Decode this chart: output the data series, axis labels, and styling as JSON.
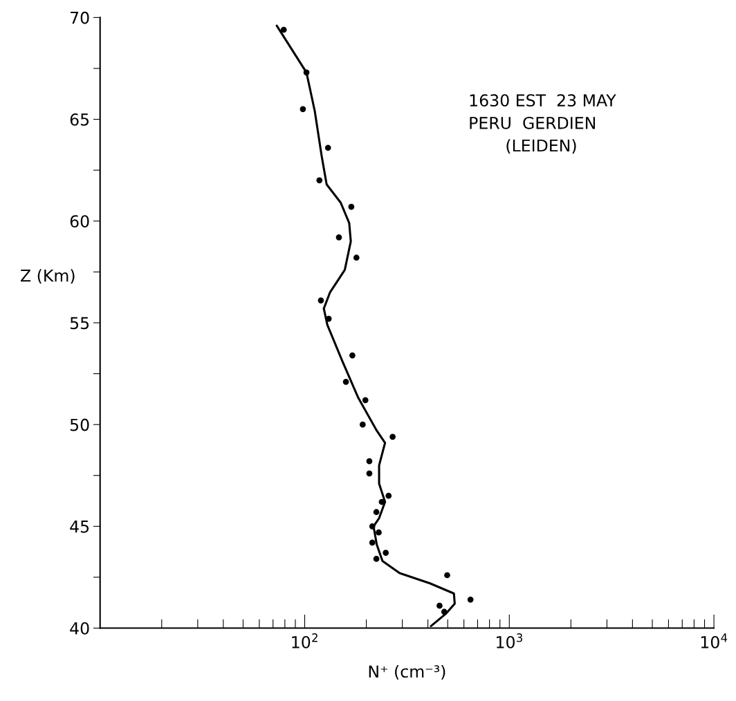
{
  "chart_data": {
    "type": "scatter",
    "xlabel": "N⁺ (cm⁻³)",
    "ylabel": "Z (Km)",
    "log": "x",
    "grid": false,
    "legend": false,
    "annotations": [
      "1630 EST  23 MAY",
      "PERU  GERDIEN",
      "(LEIDEN)"
    ],
    "xlim": [
      10,
      10000
    ],
    "xticks": [
      {
        "value": 20,
        "label": null
      },
      {
        "value": 30,
        "label": null
      },
      {
        "value": 40,
        "label": null
      },
      {
        "value": 50,
        "label": null
      },
      {
        "value": 60,
        "label": null
      },
      {
        "value": 70,
        "label": null
      },
      {
        "value": 80,
        "label": null
      },
      {
        "value": 90,
        "label": null
      },
      {
        "value": 100,
        "label": "10$^{2}$"
      },
      {
        "value": 200,
        "label": null
      },
      {
        "value": 300,
        "label": null
      },
      {
        "value": 400,
        "label": null
      },
      {
        "value": 500,
        "label": null
      },
      {
        "value": 600,
        "label": null
      },
      {
        "value": 700,
        "label": null
      },
      {
        "value": 800,
        "label": null
      },
      {
        "value": 900,
        "label": null
      },
      {
        "value": 1000,
        "label": "10$^{3}$"
      },
      {
        "value": 2000,
        "label": null
      },
      {
        "value": 3000,
        "label": null
      },
      {
        "value": 4000,
        "label": null
      },
      {
        "value": 5000,
        "label": null
      },
      {
        "value": 6000,
        "label": null
      },
      {
        "value": 7000,
        "label": null
      },
      {
        "value": 8000,
        "label": null
      },
      {
        "value": 9000,
        "label": null
      },
      {
        "value": 10000,
        "label": "10$^{4}$"
      }
    ],
    "ylim": [
      40,
      70
    ],
    "yticks": [
      40,
      {
        "value": 42.5,
        "label": null
      },
      45,
      {
        "value": 47.5,
        "label": null
      },
      50,
      {
        "value": 52.5,
        "label": null
      },
      55,
      {
        "value": 57.5,
        "label": null
      },
      60,
      {
        "value": 62.5,
        "label": null
      },
      65,
      {
        "value": 67.5,
        "label": null
      },
      70
    ],
    "series": [
      {
        "marker": "circle",
        "color": "#000000",
        "x": [
          79,
          102,
          98,
          130,
          118,
          169,
          147,
          179,
          120,
          131,
          171,
          159,
          198,
          192,
          269,
          207,
          207,
          257,
          238,
          224,
          214,
          230,
          214,
          249,
          224,
          497,
          646,
          456,
          481
        ],
        "values": [
          69.4,
          67.3,
          65.5,
          63.6,
          62.0,
          60.7,
          59.2,
          58.2,
          56.1,
          55.2,
          53.4,
          52.1,
          51.2,
          50.0,
          49.4,
          48.2,
          47.6,
          46.5,
          46.2,
          45.7,
          45.0,
          44.7,
          44.2,
          43.7,
          43.4,
          42.6,
          41.4,
          41.1,
          40.8
        ]
      },
      {
        "type": "line",
        "marker": "none",
        "line_style": "solid",
        "color": "#000000",
        "x": [
          73,
          102,
          112,
          121,
          128,
          150,
          165,
          168,
          157,
          133,
          124,
          129,
          153,
          183,
          225,
          247,
          231,
          231,
          247,
          231,
          217,
          225,
          240,
          291,
          409,
          536,
          541,
          489,
          426,
          414
        ],
        "values": [
          69.6,
          67.3,
          65.4,
          63.2,
          61.8,
          60.9,
          59.9,
          59.0,
          57.6,
          56.5,
          55.7,
          54.9,
          53.1,
          51.3,
          49.7,
          49.1,
          48.0,
          47.1,
          46.2,
          45.4,
          45.0,
          44.1,
          43.3,
          42.7,
          42.2,
          41.7,
          41.2,
          40.7,
          40.2,
          40.1
        ]
      }
    ]
  }
}
